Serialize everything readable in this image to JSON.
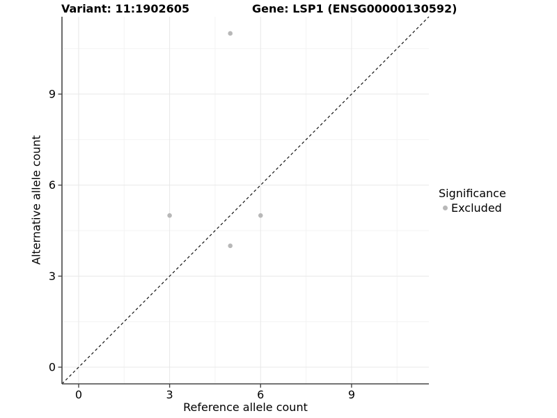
{
  "chart_data": {
    "type": "scatter",
    "title_left": "Variant: 11:1902605",
    "title_right": "Gene: LSP1 (ENSG00000130592)",
    "xlabel": "Reference allele count",
    "ylabel": "Alternative allele count",
    "xlim": [
      -0.55,
      11.55
    ],
    "ylim": [
      -0.55,
      11.55
    ],
    "x_ticks": [
      0,
      3,
      6,
      9
    ],
    "y_ticks": [
      0,
      3,
      6,
      9
    ],
    "x_minor_ticks": [
      1.5,
      4.5,
      7.5,
      10.5
    ],
    "y_minor_ticks": [
      1.5,
      4.5,
      7.5,
      10.5
    ],
    "grid": "on",
    "identity_line": {
      "slope": 1,
      "intercept": 0,
      "linetype": "dashed",
      "color": "#111111"
    },
    "series": [
      {
        "name": "Excluded",
        "color": "#b8b8b8",
        "marker": "circle",
        "size": 3.3,
        "points": [
          {
            "x": 3,
            "y": 5
          },
          {
            "x": 5,
            "y": 4
          },
          {
            "x": 5,
            "y": 11
          },
          {
            "x": 6,
            "y": 5
          }
        ]
      }
    ],
    "legend": {
      "title": "Significance",
      "position": "right",
      "items": [
        {
          "label": "Excluded",
          "color": "#b8b8b8"
        }
      ]
    },
    "colors": {
      "grid_major": "#e8e8e8",
      "grid_minor": "#f3f3f3",
      "axis": "#464646",
      "text": "#000000"
    }
  }
}
